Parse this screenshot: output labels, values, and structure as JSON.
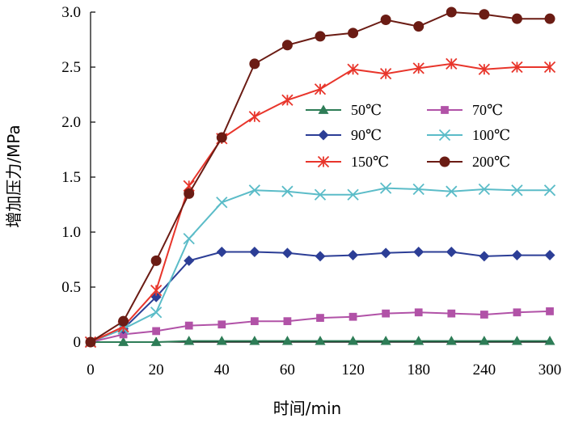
{
  "chart_data": {
    "type": "line",
    "title": "",
    "xlabel": "时间/min",
    "ylabel": "增加压力/MPa",
    "ylim": [
      0,
      3.0
    ],
    "yticks": [
      "0",
      "0.5",
      "1.0",
      "1.5",
      "2.0",
      "2.5",
      "3.0"
    ],
    "xticks": [
      "0",
      "20",
      "40",
      "60",
      "120",
      "180",
      "240",
      "300"
    ],
    "grid": false,
    "legend_position": "center-right",
    "x": [
      0,
      10,
      20,
      30,
      40,
      50,
      60,
      90,
      120,
      150,
      180,
      210,
      240,
      270,
      300
    ],
    "series": [
      {
        "name": "50℃",
        "marker": "triangle",
        "color": "#2e7d57",
        "values": [
          0,
          0,
          0,
          0.01,
          0.01,
          0.01,
          0.01,
          0.01,
          0.01,
          0.01,
          0.01,
          0.01,
          0.01,
          0.01,
          0.01
        ]
      },
      {
        "name": "70℃",
        "marker": "square",
        "color": "#b152a7",
        "values": [
          0,
          0.07,
          0.1,
          0.15,
          0.16,
          0.19,
          0.19,
          0.22,
          0.23,
          0.26,
          0.27,
          0.26,
          0.25,
          0.27,
          0.28
        ]
      },
      {
        "name": "90℃",
        "marker": "diamond",
        "color": "#2c3e96",
        "values": [
          0,
          0.12,
          0.41,
          0.74,
          0.82,
          0.82,
          0.81,
          0.78,
          0.79,
          0.81,
          0.82,
          0.82,
          0.78,
          0.79,
          0.79
        ]
      },
      {
        "name": "100℃",
        "marker": "x",
        "color": "#5bbcc8",
        "values": [
          0,
          0.12,
          0.27,
          0.94,
          1.27,
          1.38,
          1.37,
          1.34,
          1.34,
          1.4,
          1.39,
          1.37,
          1.39,
          1.38,
          1.38
        ]
      },
      {
        "name": "150℃",
        "marker": "asterisk",
        "color": "#e8352b",
        "values": [
          0,
          0.14,
          0.47,
          1.42,
          1.85,
          2.05,
          2.2,
          2.3,
          2.48,
          2.44,
          2.49,
          2.53,
          2.48,
          2.5,
          2.5
        ]
      },
      {
        "name": "200℃",
        "marker": "circle",
        "color": "#6b1c14",
        "values": [
          0,
          0.19,
          0.74,
          1.35,
          1.86,
          2.53,
          2.7,
          2.78,
          2.81,
          2.93,
          2.87,
          3.0,
          2.98,
          2.94,
          2.94
        ]
      }
    ]
  }
}
